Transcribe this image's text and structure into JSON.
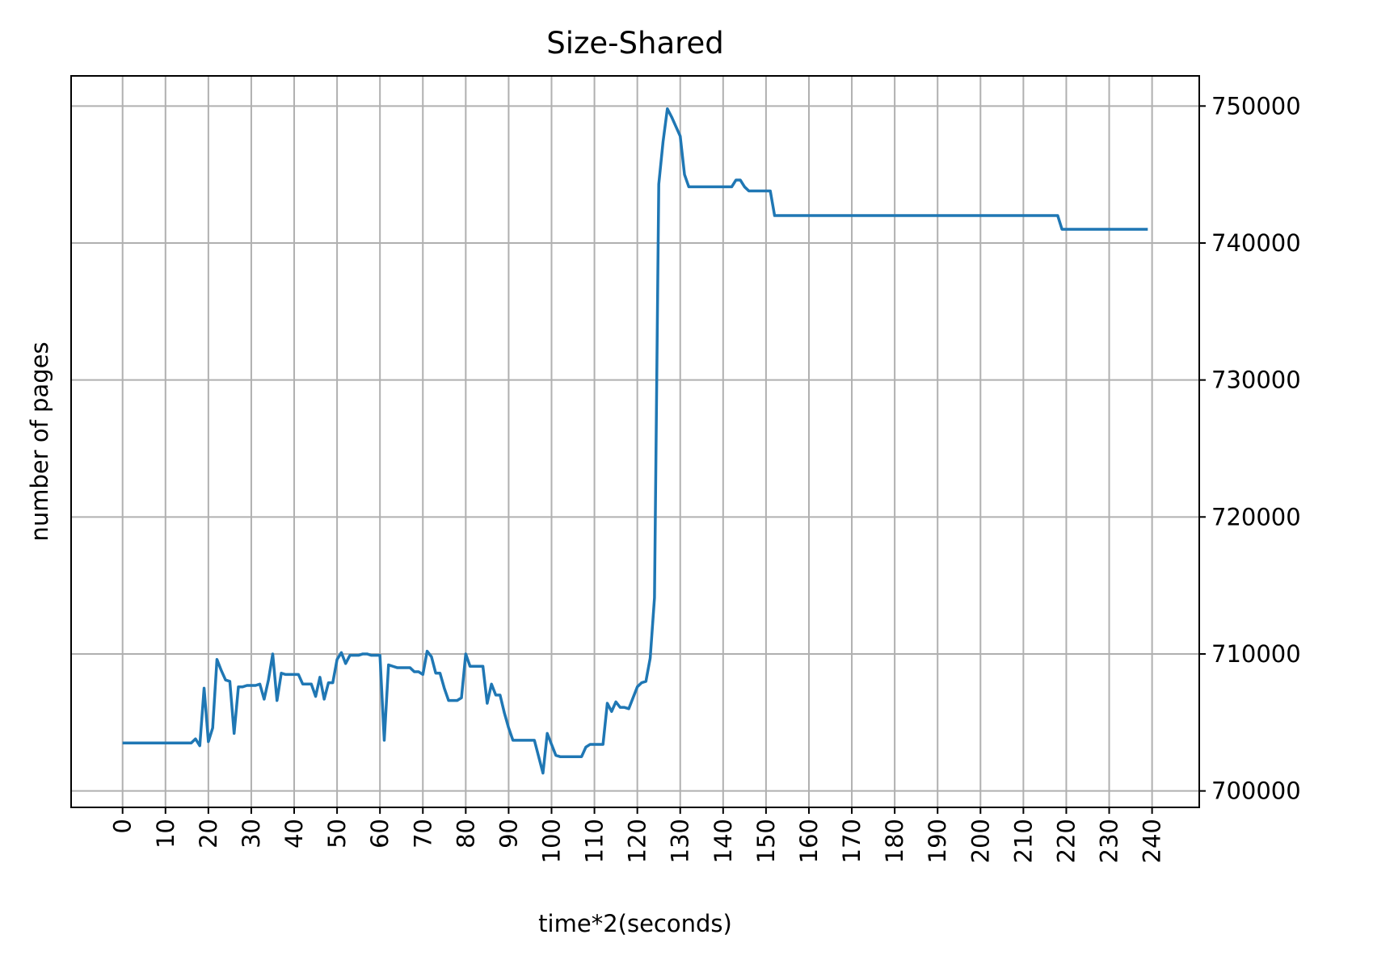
{
  "colors": {
    "series": "#1f77b4",
    "grid": "#b0b0b0",
    "axes": "#000000",
    "background": "#ffffff"
  },
  "chart_data": {
    "type": "line",
    "title": "Size-Shared",
    "xlabel": "time*2(seconds)",
    "ylabel": "number of pages",
    "xlim": [
      -12,
      251
    ],
    "ylim": [
      698800,
      752200
    ],
    "x_ticks": [
      0,
      10,
      20,
      30,
      40,
      50,
      60,
      70,
      80,
      90,
      100,
      110,
      120,
      130,
      140,
      150,
      160,
      170,
      180,
      190,
      200,
      210,
      220,
      230,
      240
    ],
    "y_ticks": [
      700000,
      710000,
      720000,
      730000,
      740000,
      750000
    ],
    "y_axis_side": "right",
    "grid": true,
    "series": [
      {
        "x": [
          0,
          16,
          17,
          18,
          19,
          20,
          21,
          22,
          23,
          24,
          25,
          26,
          27,
          28,
          29,
          30,
          31,
          32,
          33,
          34,
          35,
          36,
          37,
          38,
          39,
          40,
          41,
          42,
          43,
          44,
          45,
          46,
          47,
          48,
          49,
          50,
          51,
          52,
          53,
          54,
          55,
          56,
          57,
          58,
          59,
          60,
          61,
          62,
          63,
          64,
          65,
          66,
          67,
          68,
          69,
          70,
          71,
          72,
          73,
          74,
          75,
          76,
          77,
          78,
          79,
          80,
          81,
          82,
          83,
          84,
          85,
          86,
          87,
          88,
          89,
          90,
          91,
          92,
          93,
          94,
          95,
          96,
          97,
          98,
          99,
          100,
          101,
          102,
          103,
          104,
          105,
          106,
          107,
          108,
          109,
          110,
          111,
          112,
          113,
          114,
          115,
          116,
          117,
          118,
          119,
          120,
          121,
          122,
          123,
          124,
          125,
          126,
          127,
          128,
          129,
          130,
          131,
          132,
          133,
          134,
          135,
          136,
          137,
          138,
          139,
          140,
          141,
          142,
          143,
          144,
          145,
          146,
          147,
          148,
          149,
          150,
          151,
          152,
          218,
          219,
          239
        ],
        "y": [
          703500,
          703500,
          703800,
          703300,
          707500,
          703600,
          704600,
          709600,
          708800,
          708100,
          708000,
          704200,
          707600,
          707600,
          707700,
          707700,
          707700,
          707800,
          706700,
          708100,
          710000,
          706600,
          708600,
          708500,
          708500,
          708500,
          708500,
          707800,
          707800,
          707800,
          706900,
          708300,
          706700,
          707900,
          707900,
          709600,
          710100,
          709300,
          709900,
          709900,
          709900,
          710000,
          710000,
          709900,
          709900,
          709900,
          703700,
          709200,
          709100,
          709000,
          709000,
          709000,
          709000,
          708700,
          708700,
          708500,
          710200,
          709800,
          708600,
          708600,
          707500,
          706600,
          706600,
          706600,
          706800,
          710000,
          709100,
          709100,
          709100,
          709100,
          706400,
          707800,
          707000,
          707000,
          705700,
          704600,
          703700,
          703700,
          703700,
          703700,
          703700,
          703700,
          702500,
          701300,
          704200,
          703400,
          702600,
          702500,
          702500,
          702500,
          702500,
          702500,
          702500,
          703200,
          703400,
          703400,
          703400,
          703400,
          706400,
          705800,
          706500,
          706100,
          706100,
          706000,
          706800,
          707600,
          707900,
          708000,
          709700,
          714100,
          744300,
          747400,
          749800,
          749200,
          748500,
          747800,
          745000,
          744100,
          744100,
          744100,
          744100,
          744100,
          744100,
          744100,
          744100,
          744100,
          744100,
          744100,
          744600,
          744600,
          744100,
          743800,
          743800,
          743800,
          743800,
          743800,
          743800,
          742000,
          742000,
          741000,
          741000
        ]
      }
    ]
  }
}
